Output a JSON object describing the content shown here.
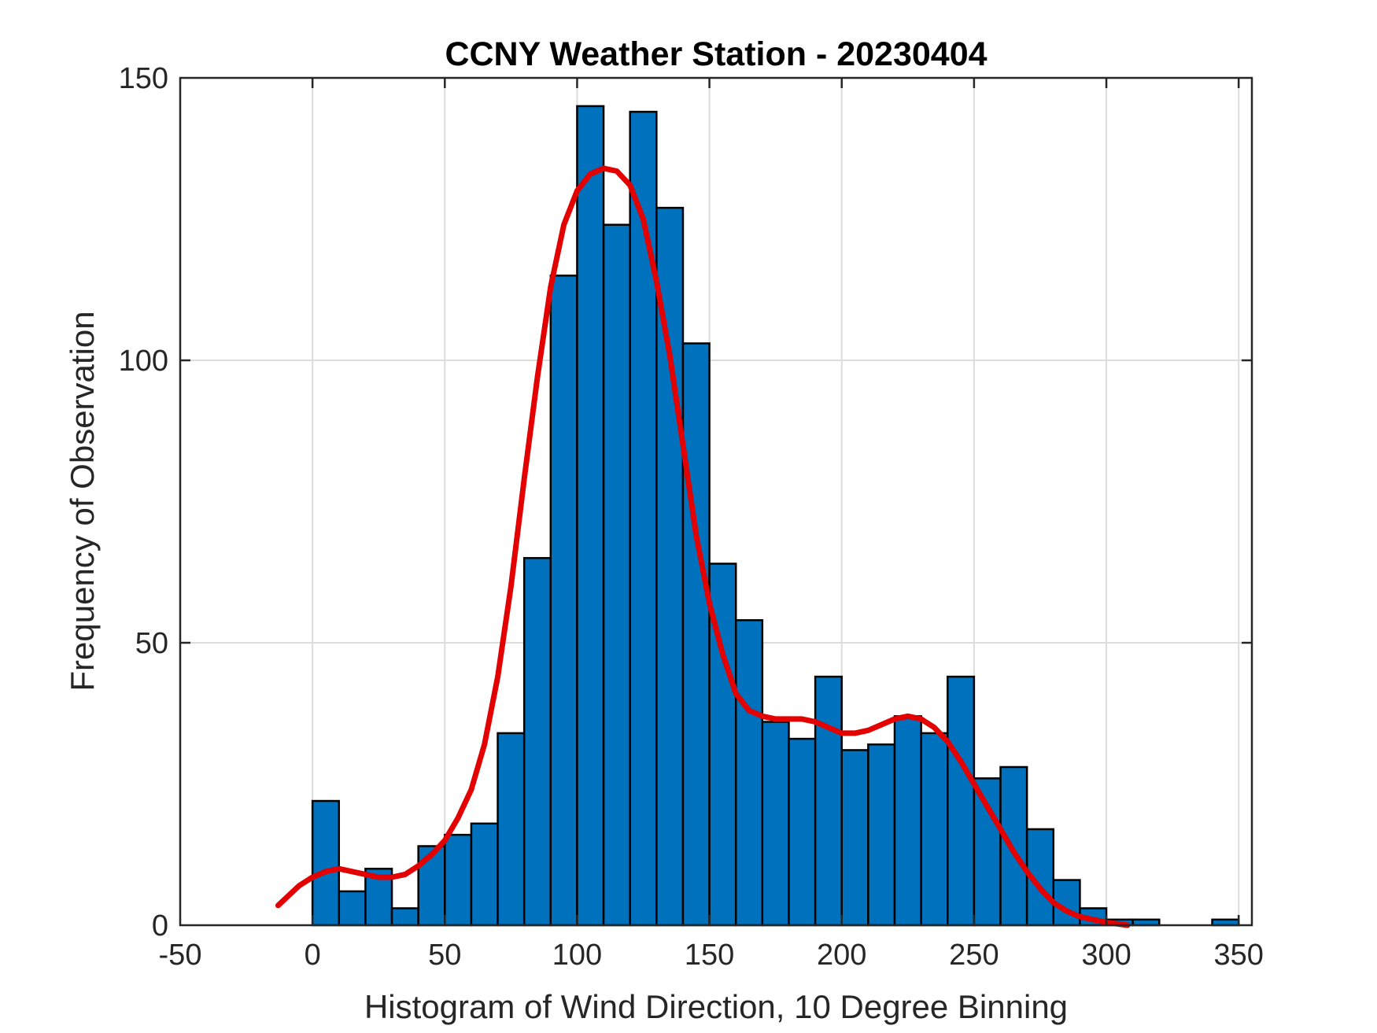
{
  "chart_data": {
    "type": "bar",
    "title": "CCNY Weather Station - 20230404",
    "xlabel": "Histogram of Wind Direction, 10 Degree Binning",
    "ylabel": "Frequency of Observation",
    "xlim": [
      -50,
      355
    ],
    "ylim": [
      0,
      150
    ],
    "xticks": [
      -50,
      0,
      50,
      100,
      150,
      200,
      250,
      300,
      350
    ],
    "yticks": [
      0,
      50,
      100,
      150
    ],
    "grid": true,
    "bin_width": 10,
    "bins": [
      {
        "start": 0,
        "end": 10,
        "value": 22
      },
      {
        "start": 10,
        "end": 20,
        "value": 6
      },
      {
        "start": 20,
        "end": 30,
        "value": 10
      },
      {
        "start": 30,
        "end": 40,
        "value": 3
      },
      {
        "start": 40,
        "end": 50,
        "value": 14
      },
      {
        "start": 50,
        "end": 60,
        "value": 16
      },
      {
        "start": 60,
        "end": 70,
        "value": 18
      },
      {
        "start": 70,
        "end": 80,
        "value": 34
      },
      {
        "start": 80,
        "end": 90,
        "value": 65
      },
      {
        "start": 90,
        "end": 100,
        "value": 115
      },
      {
        "start": 100,
        "end": 110,
        "value": 145
      },
      {
        "start": 110,
        "end": 120,
        "value": 124
      },
      {
        "start": 120,
        "end": 130,
        "value": 144
      },
      {
        "start": 130,
        "end": 140,
        "value": 127
      },
      {
        "start": 140,
        "end": 150,
        "value": 103
      },
      {
        "start": 150,
        "end": 160,
        "value": 64
      },
      {
        "start": 160,
        "end": 170,
        "value": 54
      },
      {
        "start": 170,
        "end": 180,
        "value": 36
      },
      {
        "start": 180,
        "end": 190,
        "value": 33
      },
      {
        "start": 190,
        "end": 200,
        "value": 44
      },
      {
        "start": 200,
        "end": 210,
        "value": 31
      },
      {
        "start": 210,
        "end": 220,
        "value": 32
      },
      {
        "start": 220,
        "end": 230,
        "value": 37
      },
      {
        "start": 230,
        "end": 240,
        "value": 34
      },
      {
        "start": 240,
        "end": 250,
        "value": 44
      },
      {
        "start": 250,
        "end": 260,
        "value": 26
      },
      {
        "start": 260,
        "end": 270,
        "value": 28
      },
      {
        "start": 270,
        "end": 280,
        "value": 17
      },
      {
        "start": 280,
        "end": 290,
        "value": 8
      },
      {
        "start": 290,
        "end": 300,
        "value": 3
      },
      {
        "start": 300,
        "end": 310,
        "value": 1
      },
      {
        "start": 310,
        "end": 320,
        "value": 1
      },
      {
        "start": 320,
        "end": 330,
        "value": 0
      },
      {
        "start": 330,
        "end": 340,
        "value": 0
      },
      {
        "start": 340,
        "end": 350,
        "value": 1
      }
    ],
    "density_curve": {
      "x": [
        -13,
        -5,
        0,
        5,
        10,
        15,
        20,
        25,
        30,
        35,
        40,
        45,
        50,
        55,
        60,
        65,
        70,
        75,
        80,
        85,
        90,
        95,
        100,
        105,
        110,
        115,
        120,
        125,
        130,
        135,
        140,
        145,
        150,
        155,
        160,
        165,
        170,
        175,
        180,
        185,
        190,
        195,
        200,
        205,
        210,
        215,
        220,
        225,
        230,
        235,
        240,
        245,
        250,
        255,
        260,
        265,
        270,
        275,
        280,
        285,
        290,
        295,
        300,
        308
      ],
      "y": [
        3.5,
        7,
        8.5,
        9.5,
        10,
        9.5,
        9,
        8.5,
        8.5,
        9,
        10.5,
        12.5,
        15,
        19,
        24,
        32,
        44,
        60,
        79,
        97,
        113,
        124,
        130,
        133,
        134,
        133.5,
        131,
        125,
        114,
        101,
        85,
        69,
        57,
        48,
        41,
        38,
        37,
        36.5,
        36.5,
        36.5,
        36,
        35,
        34,
        34,
        34.5,
        35.5,
        36.5,
        37,
        36.5,
        35,
        32.5,
        29,
        25,
        21,
        17,
        13,
        9.5,
        6.5,
        4,
        2.5,
        1.5,
        1,
        0.5,
        0
      ],
      "color": "#e30000"
    },
    "colors": {
      "bar_fill": "#0072bd",
      "bar_edge": "#000000",
      "grid": "#dcdcdc",
      "axis": "#262626"
    }
  }
}
